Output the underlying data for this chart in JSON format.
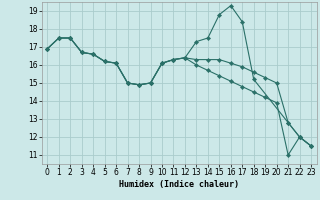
{
  "xlabel": "Humidex (Indice chaleur)",
  "background_color": "#cce8e8",
  "grid_color": "#aacccc",
  "line_color": "#2a7068",
  "xlim": [
    -0.5,
    23.5
  ],
  "ylim": [
    10.5,
    19.5
  ],
  "yticks": [
    11,
    12,
    13,
    14,
    15,
    16,
    17,
    18,
    19
  ],
  "xticks": [
    0,
    1,
    2,
    3,
    4,
    5,
    6,
    7,
    8,
    9,
    10,
    11,
    12,
    13,
    14,
    15,
    16,
    17,
    18,
    19,
    20,
    21,
    22,
    23
  ],
  "series1_x": [
    0,
    1,
    2,
    3,
    4,
    5,
    6,
    7,
    8,
    9,
    10,
    11,
    12,
    13,
    14,
    15,
    16,
    17,
    18,
    21,
    22,
    23
  ],
  "series1_y": [
    16.9,
    17.5,
    17.5,
    16.7,
    16.6,
    16.2,
    16.1,
    15.0,
    14.9,
    15.0,
    16.1,
    16.3,
    16.4,
    17.3,
    17.5,
    18.8,
    19.3,
    18.4,
    15.2,
    12.8,
    12.0,
    11.5
  ],
  "series2_x": [
    0,
    1,
    2,
    3,
    4,
    5,
    6,
    7,
    8,
    9,
    10,
    11,
    12,
    13,
    14,
    15,
    16,
    17,
    18,
    19,
    20,
    21,
    22,
    23
  ],
  "series2_y": [
    16.9,
    17.5,
    17.5,
    16.7,
    16.6,
    16.2,
    16.1,
    15.0,
    14.9,
    15.0,
    16.1,
    16.3,
    16.4,
    16.3,
    16.3,
    16.3,
    16.1,
    15.9,
    15.6,
    15.3,
    15.0,
    12.8,
    12.0,
    11.5
  ],
  "series3_x": [
    0,
    1,
    2,
    3,
    4,
    5,
    6,
    7,
    8,
    9,
    10,
    11,
    12,
    13,
    14,
    15,
    16,
    17,
    18,
    19,
    20,
    21,
    22,
    23
  ],
  "series3_y": [
    16.9,
    17.5,
    17.5,
    16.7,
    16.6,
    16.2,
    16.1,
    15.0,
    14.9,
    15.0,
    16.1,
    16.3,
    16.4,
    16.0,
    15.7,
    15.4,
    15.1,
    14.8,
    14.5,
    14.2,
    13.9,
    11.0,
    12.0,
    11.5
  ]
}
